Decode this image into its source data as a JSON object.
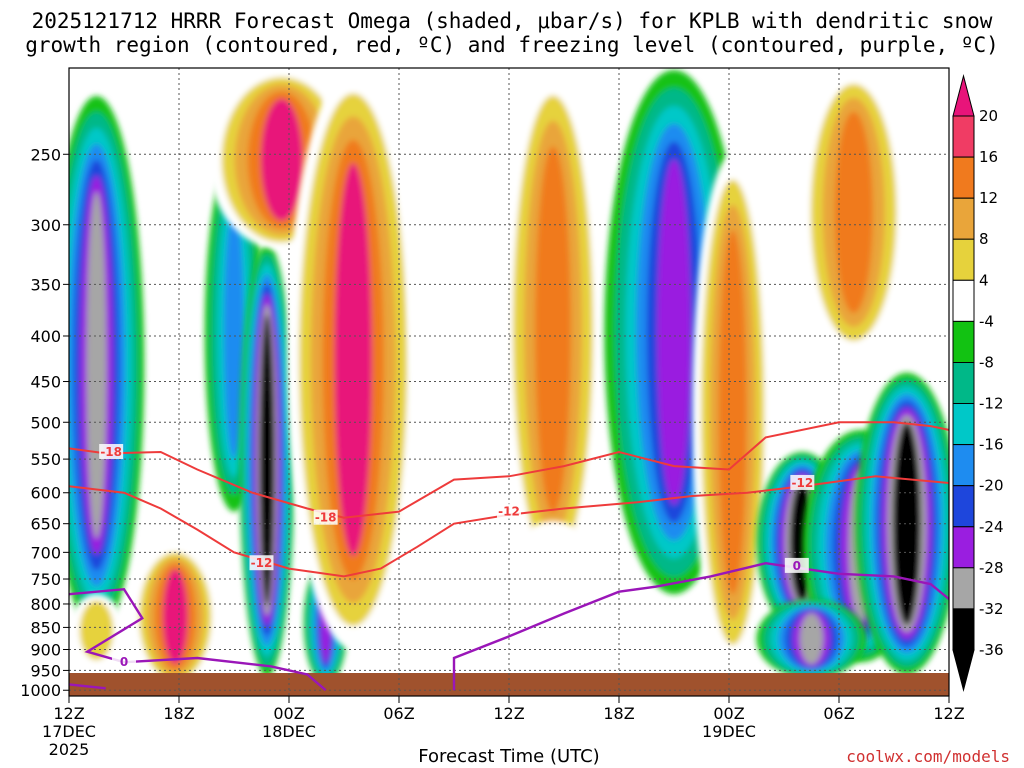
{
  "chart_data": {
    "type": "heatmap",
    "title_line1": "2025121712 HRRR Forecast Omega (shaded, μbar/s) for KPLB with dendritic snow",
    "title_line2": "growth region (contoured, red, ºC) and freezing level (contoured, purple, ºC)",
    "xlabel": "Forecast Time (UTC)",
    "credit": "coolwx.com/models",
    "x_hours_range": [
      0,
      48
    ],
    "x_ticks": [
      {
        "hour": 0,
        "label": "12Z",
        "sub1": "17DEC",
        "sub2": "2025"
      },
      {
        "hour": 6,
        "label": "18Z",
        "sub1": "",
        "sub2": ""
      },
      {
        "hour": 12,
        "label": "00Z",
        "sub1": "18DEC",
        "sub2": ""
      },
      {
        "hour": 18,
        "label": "06Z",
        "sub1": "",
        "sub2": ""
      },
      {
        "hour": 24,
        "label": "12Z",
        "sub1": "",
        "sub2": ""
      },
      {
        "hour": 30,
        "label": "18Z",
        "sub1": "",
        "sub2": ""
      },
      {
        "hour": 36,
        "label": "00Z",
        "sub1": "19DEC",
        "sub2": ""
      },
      {
        "hour": 42,
        "label": "06Z",
        "sub1": "",
        "sub2": ""
      },
      {
        "hour": 48,
        "label": "12Z",
        "sub1": "",
        "sub2": ""
      }
    ],
    "y_pressure_range": [
      1015,
      200
    ],
    "y_ticks": [
      250,
      300,
      350,
      400,
      450,
      500,
      550,
      600,
      650,
      700,
      750,
      800,
      850,
      900,
      950,
      1000
    ],
    "colorbar": {
      "labels": [
        "20",
        "16",
        "12",
        "8",
        "4",
        "-4",
        "-8",
        "-12",
        "-16",
        "-20",
        "-24",
        "-28",
        "-32",
        "-36"
      ],
      "colors": [
        "#f03c64",
        "#f07a1e",
        "#e9a53a",
        "#e6d23c",
        "#ffffff",
        "#12c212",
        "#00b888",
        "#00c8c8",
        "#1e8cf0",
        "#1e46dc",
        "#9a1ee0",
        "#a6a6a6",
        "#000000"
      ],
      "top_color": "#e8147a",
      "levels": [
        20,
        16,
        12,
        8,
        4,
        -4,
        -8,
        -12,
        -16,
        -20,
        -24,
        -28,
        -32,
        -36
      ]
    },
    "contour_labels": {
      "dgz_upper": "-18",
      "dgz_lower_a": "-18",
      "dgz_lower_b": "-12",
      "dgz_mid": "-12",
      "dgz_right": "-12",
      "freezing_a": "0",
      "freezing_b": "0"
    },
    "dgz_upper_line": [
      [
        0,
        535
      ],
      [
        2,
        542
      ],
      [
        5,
        540
      ],
      [
        7,
        565
      ],
      [
        10,
        600
      ],
      [
        13,
        625
      ],
      [
        15,
        640
      ],
      [
        18,
        630
      ],
      [
        21,
        580
      ],
      [
        24,
        575
      ],
      [
        27,
        560
      ],
      [
        30,
        540
      ],
      [
        33,
        560
      ],
      [
        36,
        565
      ],
      [
        38,
        520
      ],
      [
        42,
        500
      ],
      [
        45,
        500
      ],
      [
        47,
        505
      ],
      [
        48,
        510
      ]
    ],
    "dgz_lower_line": [
      [
        0,
        590
      ],
      [
        3,
        600
      ],
      [
        5,
        625
      ],
      [
        7,
        660
      ],
      [
        9,
        700
      ],
      [
        12,
        730
      ],
      [
        15,
        745
      ],
      [
        17,
        730
      ],
      [
        19,
        690
      ],
      [
        21,
        650
      ],
      [
        24,
        635
      ],
      [
        27,
        625
      ],
      [
        31,
        615
      ],
      [
        34,
        605
      ],
      [
        37,
        600
      ],
      [
        40,
        590
      ],
      [
        44,
        575
      ],
      [
        48,
        585
      ]
    ],
    "freezing_line": [
      [
        0,
        780
      ],
      [
        3,
        770
      ],
      [
        4,
        830
      ],
      [
        1,
        905
      ],
      [
        3,
        930
      ],
      [
        7,
        920
      ],
      [
        11,
        940
      ],
      [
        13,
        960
      ],
      [
        14,
        1000
      ]
    ],
    "freezing_line2": [
      [
        21,
        1000
      ],
      [
        21,
        920
      ],
      [
        24,
        870
      ],
      [
        27,
        820
      ],
      [
        30,
        775
      ],
      [
        32,
        765
      ],
      [
        35,
        745
      ],
      [
        38,
        720
      ],
      [
        42,
        740
      ],
      [
        45,
        745
      ],
      [
        47,
        760
      ],
      [
        48,
        790
      ]
    ],
    "freezing_line3": [
      [
        0,
        985
      ],
      [
        2,
        995
      ]
    ],
    "omega_features": [
      {
        "t": 1.5,
        "p": 540,
        "w": 2.6,
        "h": 650,
        "level": -28
      },
      {
        "t": 1.5,
        "p": 860,
        "w": 1.5,
        "h": 160,
        "level": 8
      },
      {
        "t": 5.8,
        "p": 840,
        "w": 2.4,
        "h": 300,
        "level": 20
      },
      {
        "t": 9.0,
        "p": 440,
        "w": 1.6,
        "h": 380,
        "level": -16
      },
      {
        "t": 10.8,
        "p": 640,
        "w": 1.5,
        "h": 650,
        "level": -36
      },
      {
        "t": 11.6,
        "p": 230,
        "w": 4.0,
        "h": 180,
        "level": 20
      },
      {
        "t": 14.0,
        "p": 850,
        "w": 1.2,
        "h": 270,
        "level": -24
      },
      {
        "t": 15.5,
        "p": 500,
        "w": 3.6,
        "h": 800,
        "level": 20
      },
      {
        "t": 20.4,
        "p": 360,
        "w": 1.8,
        "h": 550,
        "level": 4
      },
      {
        "t": 26.4,
        "p": 470,
        "w": 2.8,
        "h": 600,
        "level": 16
      },
      {
        "t": 26.4,
        "p": 760,
        "w": 2.6,
        "h": 230,
        "level": 4
      },
      {
        "t": 33.0,
        "p": 430,
        "w": 3.8,
        "h": 700,
        "level": -24
      },
      {
        "t": 36.2,
        "p": 600,
        "w": 2.2,
        "h": 700,
        "level": 16
      },
      {
        "t": 40.0,
        "p": 700,
        "w": 2.5,
        "h": 320,
        "level": -36
      },
      {
        "t": 43.2,
        "p": 720,
        "w": 3.2,
        "h": 420,
        "level": -28
      },
      {
        "t": 45.7,
        "p": 700,
        "w": 2.8,
        "h": 520,
        "level": -36
      },
      {
        "t": 42.8,
        "p": 280,
        "w": 3.0,
        "h": 280,
        "level": 16
      },
      {
        "t": 40.5,
        "p": 880,
        "w": 3.0,
        "h": 180,
        "level": -28
      }
    ]
  }
}
